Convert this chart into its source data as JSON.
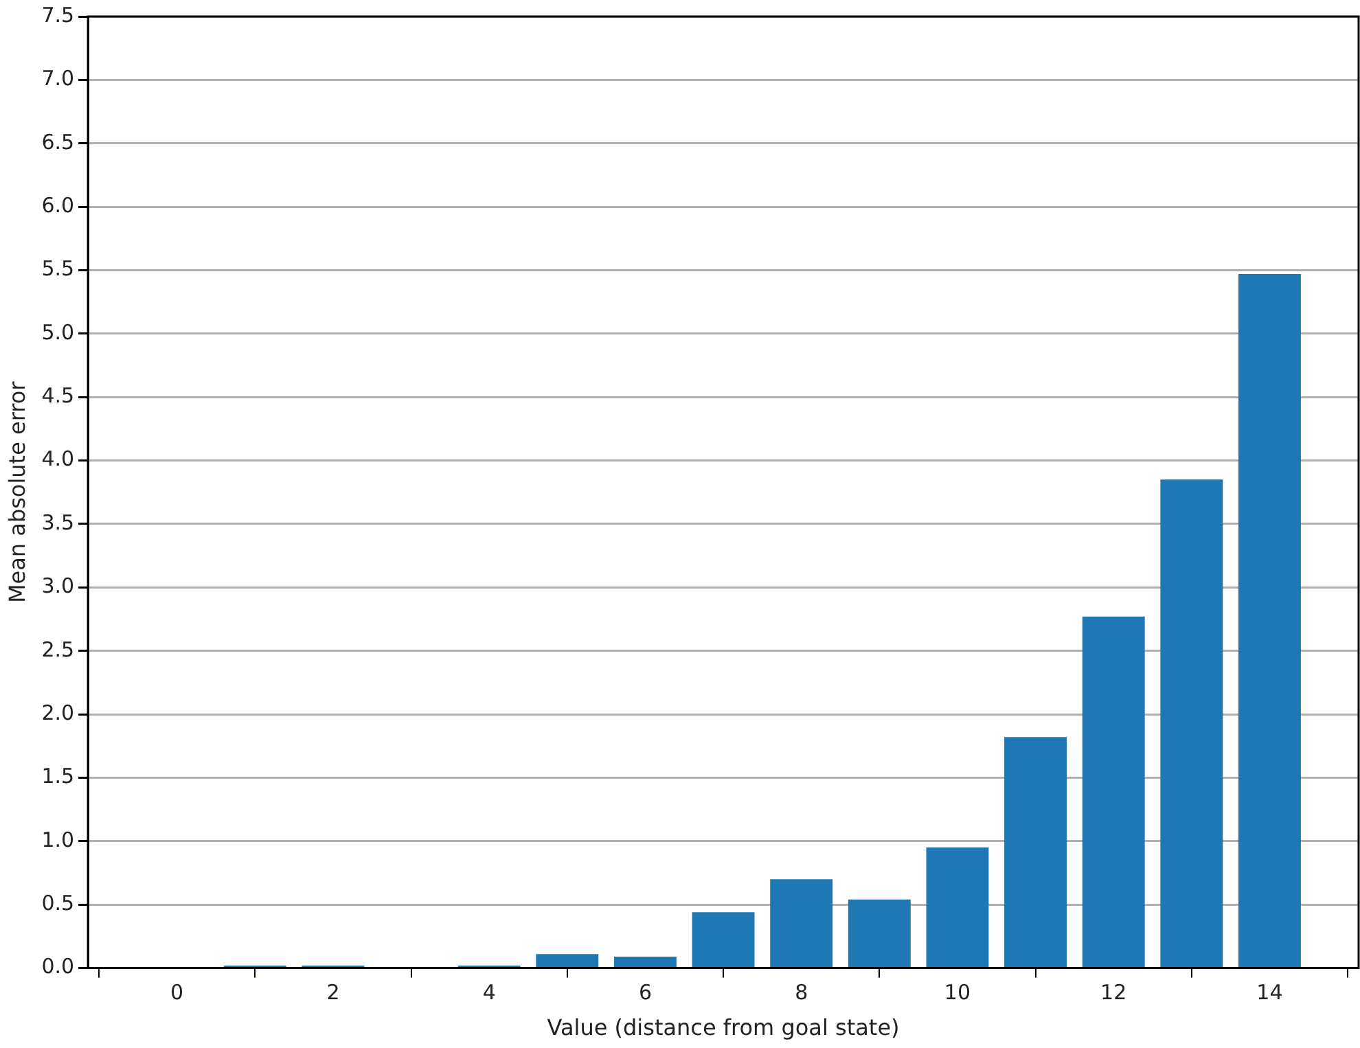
{
  "chart_data": {
    "type": "bar",
    "xlabel": "Value (distance from goal state)",
    "ylabel": "Mean absolute error",
    "x": [
      0,
      1,
      2,
      3,
      4,
      5,
      6,
      7,
      8,
      9,
      10,
      11,
      12,
      13,
      14
    ],
    "values": [
      0,
      0.02,
      0.02,
      0,
      0.02,
      0.11,
      0.09,
      0.44,
      0.7,
      0.54,
      0.95,
      1.82,
      2.77,
      3.85,
      5.47
    ],
    "color": "#1f77b4",
    "xlim": [
      -1.14,
      15.14
    ],
    "xticks": [
      0,
      2,
      4,
      6,
      8,
      10,
      12,
      14
    ],
    "ylim": [
      0,
      7.5
    ],
    "yticks": [
      {
        "value": 0,
        "label": "0.0"
      },
      {
        "value": 0.5,
        "label": "0.5"
      },
      {
        "value": 1,
        "label": "1.0"
      },
      {
        "value": 1.5,
        "label": "1.5"
      },
      {
        "value": 2,
        "label": "2.0"
      },
      {
        "value": 2.5,
        "label": "2.5"
      },
      {
        "value": 3,
        "label": "3.0"
      },
      {
        "value": 3.5,
        "label": "3.5"
      },
      {
        "value": 4,
        "label": "4.0"
      },
      {
        "value": 4.5,
        "label": "4.5"
      },
      {
        "value": 5,
        "label": "5.0"
      },
      {
        "value": 5.5,
        "label": "5.5"
      },
      {
        "value": 6,
        "label": "6.0"
      },
      {
        "value": 6.5,
        "label": "6.5"
      },
      {
        "value": 7,
        "label": "7.0"
      },
      {
        "value": 7.5,
        "label": "7.5"
      }
    ],
    "grid": "y"
  }
}
